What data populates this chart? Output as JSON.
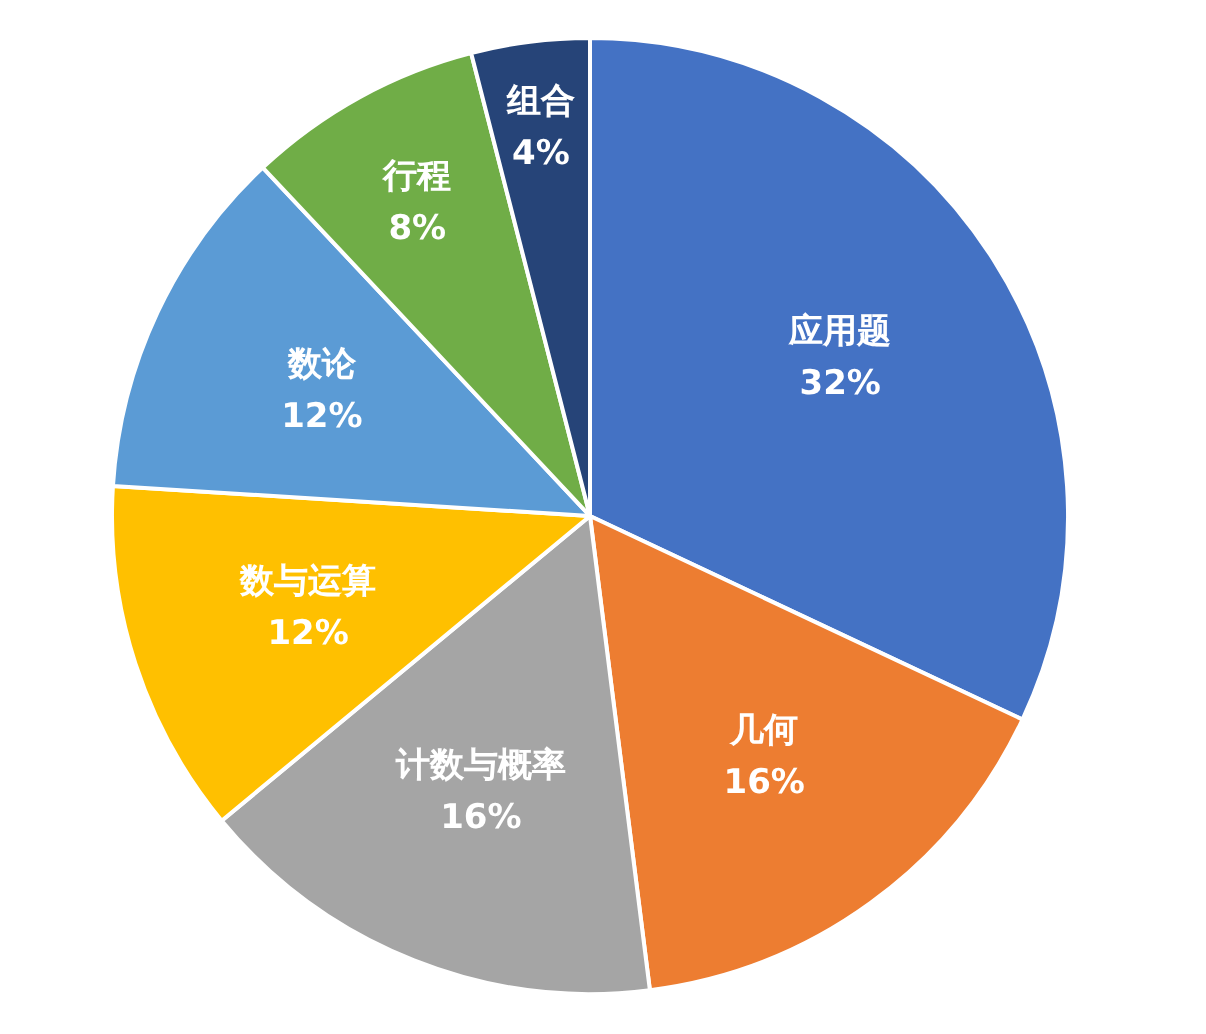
{
  "chart_data": {
    "type": "pie",
    "categories": [
      "应用题",
      "几何",
      "计数与概率",
      "数与运算",
      "数论",
      "行程",
      "组合"
    ],
    "values": [
      32,
      16,
      16,
      12,
      12,
      8,
      4
    ],
    "colors": [
      "#4472c4",
      "#ed7d31",
      "#a5a5a5",
      "#ffc000",
      "#5b9bd5",
      "#70ad47",
      "#264478"
    ],
    "value_labels": [
      "32%",
      "16%",
      "16%",
      "12%",
      "12%",
      "8%",
      "4%"
    ],
    "legend": false
  }
}
